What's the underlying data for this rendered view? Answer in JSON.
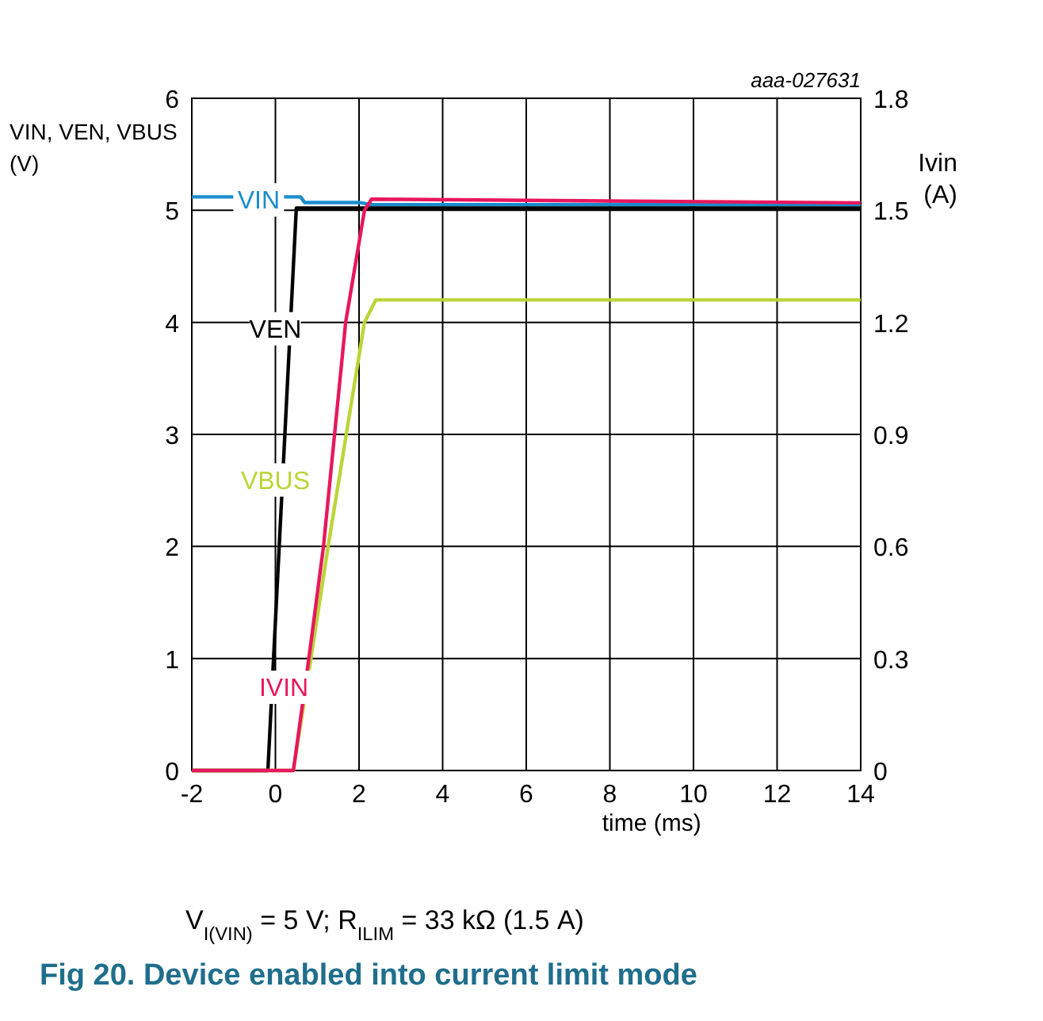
{
  "chart_data": {
    "type": "line",
    "title": "Fig 20.   Device enabled into current limit mode",
    "xlabel": "time (ms)",
    "ylabel": "VIN, VEN, VBUS (V)",
    "y2label": "Ivin (A)",
    "annotations": [
      "aaa-027631",
      "V$_{I(VIN)}$ = 5 V; R$_{ILIM}$ = 33 kΩ (1.5 A)"
    ],
    "xlim": [
      -2,
      14
    ],
    "xticks": [
      -2,
      0,
      2,
      4,
      6,
      8,
      10,
      12,
      14
    ],
    "ylim": [
      0,
      6
    ],
    "yticks": [
      0,
      1,
      2,
      3,
      4,
      5,
      6
    ],
    "y2lim": [
      0,
      1.8
    ],
    "y2ticks": [
      0,
      0.3,
      0.6,
      0.9,
      1.2,
      1.5,
      1.8
    ],
    "grid": true,
    "line_style": "solid",
    "series": [
      {
        "name": "VIN",
        "color": "#1a8ccc",
        "x": [
          -2,
          0.6,
          0.7,
          2,
          2.3,
          14
        ],
        "values": [
          5.12,
          5.12,
          5.07,
          5.07,
          5.05,
          5.05
        ]
      },
      {
        "name": "VEN",
        "color": "#000000",
        "x": [
          -2,
          -0.18,
          0.5,
          14
        ],
        "values": [
          0,
          0,
          5.02,
          5.02
        ]
      },
      {
        "name": "VBUS",
        "color": "#bcd437",
        "x": [
          -2,
          0.43,
          0.85,
          1.26,
          2.13,
          2.4,
          14
        ],
        "values": [
          0,
          0,
          1,
          2,
          4,
          4.2,
          4.2
        ]
      },
      {
        "name": "IVIN",
        "color": "#e8175d",
        "axis": "y2",
        "x": [
          -2,
          0.43,
          0.8,
          1.15,
          1.68,
          2.13,
          2.3,
          14
        ],
        "values": [
          0,
          0,
          0.3,
          0.6,
          1.2,
          1.5,
          1.53,
          1.52
        ]
      }
    ]
  }
}
